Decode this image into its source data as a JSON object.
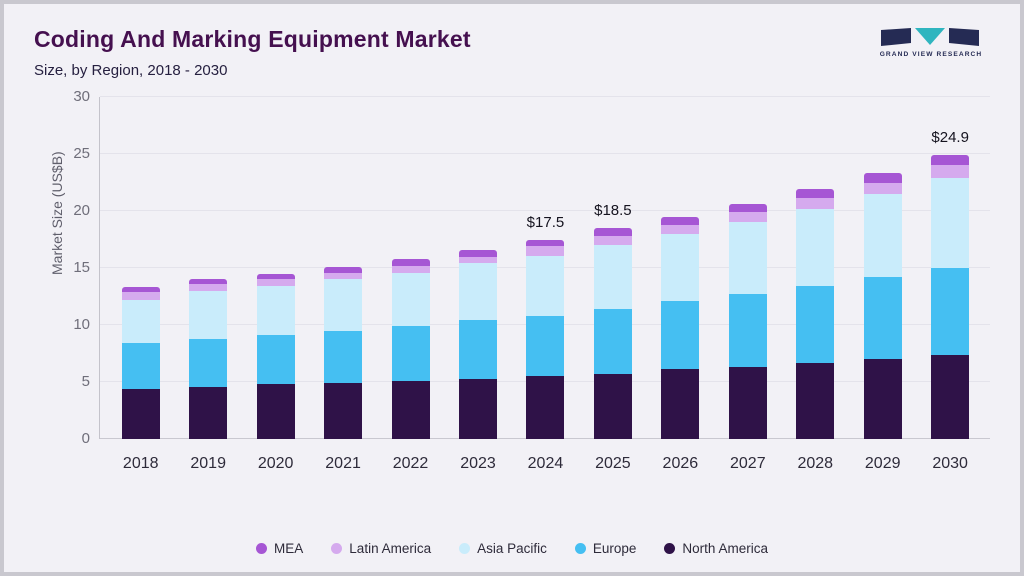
{
  "header": {
    "title": "Coding And Marking Equipment Market",
    "subtitle": "Size, by Region, 2018 - 2030",
    "logo_text": "GRAND VIEW RESEARCH"
  },
  "colors": {
    "background": "#f2f1f6",
    "title": "#45104f",
    "logo_navy": "#252b54",
    "logo_teal": "#2fb5bf"
  },
  "chart_data": {
    "type": "bar",
    "stacked": true,
    "title": "Coding And Marking Equipment Market",
    "subtitle": "Size, by Region, 2018 - 2030",
    "xlabel": "",
    "ylabel": "Market Size (US$B)",
    "ylim": [
      0,
      30
    ],
    "yticks": [
      0,
      5,
      10,
      15,
      20,
      25,
      30
    ],
    "grid": true,
    "legend_position": "bottom",
    "categories": [
      "2018",
      "2019",
      "2020",
      "2021",
      "2022",
      "2023",
      "2024",
      "2025",
      "2026",
      "2027",
      "2028",
      "2029",
      "2030"
    ],
    "series": [
      {
        "name": "North America",
        "color": "#2f1248",
        "values": [
          4.4,
          4.6,
          4.8,
          4.9,
          5.1,
          5.3,
          5.5,
          5.7,
          6.1,
          6.3,
          6.7,
          7.0,
          7.4
        ]
      },
      {
        "name": "Europe",
        "color": "#45bff2",
        "values": [
          4.0,
          4.2,
          4.3,
          4.6,
          4.8,
          5.1,
          5.3,
          5.7,
          6.0,
          6.4,
          6.7,
          7.2,
          7.6
        ]
      },
      {
        "name": "Asia Pacific",
        "color": "#c9ecfb",
        "values": [
          3.8,
          4.2,
          4.3,
          4.5,
          4.7,
          5.0,
          5.3,
          5.6,
          5.9,
          6.3,
          6.8,
          7.3,
          7.9
        ]
      },
      {
        "name": "Latin America",
        "color": "#d5aaee",
        "values": [
          0.7,
          0.6,
          0.6,
          0.6,
          0.6,
          0.6,
          0.8,
          0.8,
          0.8,
          0.9,
          0.9,
          1.0,
          1.1
        ]
      },
      {
        "name": "MEA",
        "color": "#a656d4",
        "values": [
          0.4,
          0.4,
          0.5,
          0.5,
          0.6,
          0.6,
          0.6,
          0.7,
          0.7,
          0.7,
          0.8,
          0.8,
          0.9
        ]
      }
    ],
    "legend": [
      "MEA",
      "Latin America",
      "Asia Pacific",
      "Europe",
      "North America"
    ],
    "annotations": [
      {
        "category": "2024",
        "text": "$17.5"
      },
      {
        "category": "2025",
        "text": "$18.5"
      },
      {
        "category": "2030",
        "text": "$24.9"
      }
    ]
  }
}
